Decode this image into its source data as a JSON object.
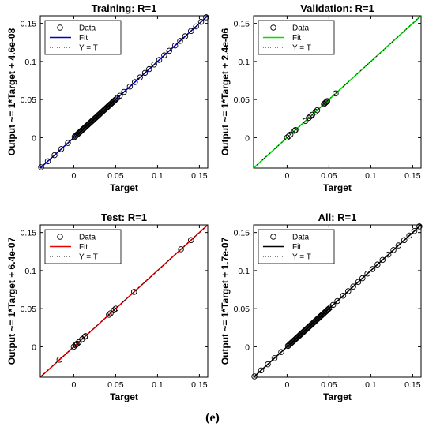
{
  "figure_label": "(e)",
  "chart_data": [
    {
      "type": "scatter",
      "title": "Training: R=1",
      "xlabel": "Target",
      "ylabel": "Output ~= 1*Target + 4.6e-08",
      "xlim": [
        -0.04,
        0.16
      ],
      "ylim": [
        -0.04,
        0.16
      ],
      "xticks": [
        "0",
        "0.05",
        "0.1",
        "0.15"
      ],
      "yticks": [
        "0",
        "0.05",
        "0.1",
        "0.15"
      ],
      "fit_color": "#0000cc",
      "legend": [
        "Data",
        "Fit",
        "Y = T"
      ],
      "legend_position": "top-left",
      "points": [
        -0.039,
        -0.031,
        -0.023,
        -0.015,
        -0.007,
        0.001,
        0.002,
        0.003,
        0.004,
        0.005,
        0.006,
        0.007,
        0.008,
        0.009,
        0.01,
        0.011,
        0.012,
        0.013,
        0.014,
        0.015,
        0.016,
        0.017,
        0.018,
        0.019,
        0.02,
        0.021,
        0.022,
        0.023,
        0.024,
        0.025,
        0.026,
        0.027,
        0.028,
        0.029,
        0.03,
        0.031,
        0.032,
        0.033,
        0.034,
        0.035,
        0.036,
        0.037,
        0.038,
        0.039,
        0.04,
        0.041,
        0.042,
        0.043,
        0.044,
        0.045,
        0.046,
        0.047,
        0.048,
        0.049,
        0.05,
        0.052,
        0.055,
        0.06,
        0.067,
        0.073,
        0.079,
        0.085,
        0.09,
        0.096,
        0.102,
        0.108,
        0.114,
        0.121,
        0.127,
        0.133,
        0.14,
        0.146,
        0.152,
        0.158
      ]
    },
    {
      "type": "scatter",
      "title": "Validation: R=1",
      "xlabel": "Target",
      "ylabel": "Output ~= 1*Target + 2.4e-06",
      "xlim": [
        -0.04,
        0.16
      ],
      "ylim": [
        -0.04,
        0.16
      ],
      "xticks": [
        "0",
        "0.05",
        "0.1",
        "0.15"
      ],
      "yticks": [
        "0",
        "0.05",
        "0.1",
        "0.15"
      ],
      "fit_color": "#00e000",
      "legend": [
        "Data",
        "Fit",
        "Y = T"
      ],
      "legend_position": "top-left",
      "points": [
        0.0,
        0.002,
        0.004,
        0.009,
        0.01,
        0.022,
        0.026,
        0.028,
        0.03,
        0.034,
        0.036,
        0.044,
        0.045,
        0.046,
        0.047,
        0.048,
        0.058
      ]
    },
    {
      "type": "scatter",
      "title": "Test: R=1",
      "xlabel": "Target",
      "ylabel": "Output ~= 1*Target + 6.4e-07",
      "xlim": [
        -0.04,
        0.16
      ],
      "ylim": [
        -0.04,
        0.16
      ],
      "xticks": [
        "0",
        "0.05",
        "0.1",
        "0.15"
      ],
      "yticks": [
        "0",
        "0.05",
        "0.1",
        "0.15"
      ],
      "fit_color": "#ee0000",
      "legend": [
        "Data",
        "Fit",
        "Y = T"
      ],
      "legend_position": "top-left",
      "points": [
        -0.017,
        0.0,
        0.002,
        0.003,
        0.004,
        0.006,
        0.01,
        0.013,
        0.014,
        0.042,
        0.044,
        0.048,
        0.05,
        0.072,
        0.128,
        0.14
      ]
    },
    {
      "type": "scatter",
      "title": "All: R=1",
      "xlabel": "Target",
      "ylabel": "Output ~= 1*Target + 1.7e-07",
      "xlim": [
        -0.04,
        0.16
      ],
      "ylim": [
        -0.04,
        0.16
      ],
      "xticks": [
        "0",
        "0.05",
        "0.1",
        "0.15"
      ],
      "yticks": [
        "0",
        "0.05",
        "0.1",
        "0.15"
      ],
      "fit_color": "#000000",
      "legend": [
        "Data",
        "Fit",
        "Y = T"
      ],
      "legend_position": "top-left",
      "points": [
        -0.039,
        -0.031,
        -0.023,
        -0.015,
        -0.007,
        0.001,
        0.002,
        0.003,
        0.004,
        0.005,
        0.006,
        0.007,
        0.008,
        0.009,
        0.01,
        0.011,
        0.012,
        0.013,
        0.014,
        0.015,
        0.016,
        0.017,
        0.018,
        0.019,
        0.02,
        0.021,
        0.022,
        0.023,
        0.024,
        0.025,
        0.026,
        0.027,
        0.028,
        0.029,
        0.03,
        0.031,
        0.032,
        0.033,
        0.034,
        0.035,
        0.036,
        0.037,
        0.038,
        0.039,
        0.04,
        0.041,
        0.042,
        0.043,
        0.044,
        0.045,
        0.046,
        0.047,
        0.048,
        0.049,
        0.05,
        0.052,
        0.055,
        0.06,
        0.067,
        0.073,
        0.079,
        0.085,
        0.09,
        0.096,
        0.102,
        0.108,
        0.114,
        0.121,
        0.127,
        0.133,
        0.14,
        0.146,
        0.152,
        0.158
      ]
    }
  ]
}
